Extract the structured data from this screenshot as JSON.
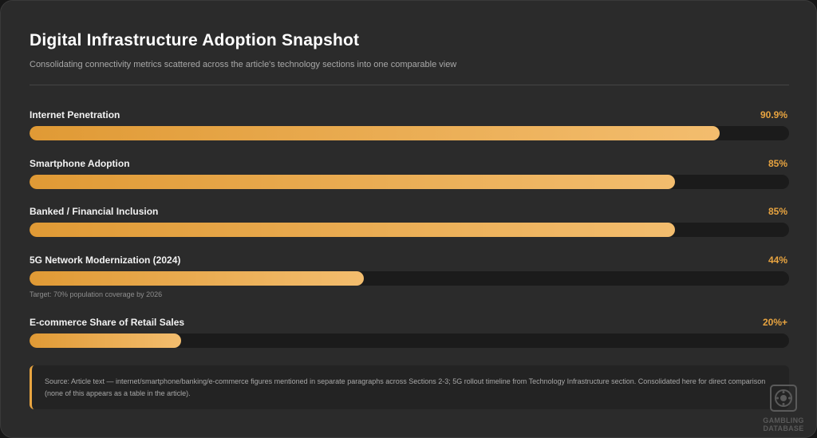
{
  "title": "Digital Infrastructure Adoption Snapshot",
  "subtitle": "Consolidating connectivity metrics scattered across the article's technology sections into one comparable view",
  "chart_data": {
    "type": "bar",
    "orientation": "horizontal",
    "value_unit": "%",
    "xlim": [
      0,
      100
    ],
    "grid": false,
    "legend": "none",
    "bar_gradient": [
      "#e09a35",
      "#f3bd6e"
    ],
    "value_color": "#e8a440",
    "track_color": "#1b1b1b",
    "rows": [
      {
        "label": "Internet Penetration",
        "value": 90.9,
        "display": "90.9%"
      },
      {
        "label": "Smartphone Adoption",
        "value": 85,
        "display": "85%"
      },
      {
        "label": "Banked / Financial Inclusion",
        "value": 85,
        "display": "85%"
      },
      {
        "label": "5G Network Modernization (2024)",
        "value": 44,
        "display": "44%",
        "note": "Target: 70% population coverage by 2026"
      },
      {
        "label": "E-commerce Share of Retail Sales",
        "value": 20,
        "display": "20%+"
      }
    ]
  },
  "source_note": "Source: Article text — internet/smartphone/banking/e-commerce figures mentioned in separate paragraphs across Sections 2-3; 5G rollout timeline from Technology Infrastructure section. Consolidated here for direct comparison (none of this appears as a table in the article).",
  "watermark": {
    "line1": "GAMBLING",
    "line2": "DATABASE"
  }
}
